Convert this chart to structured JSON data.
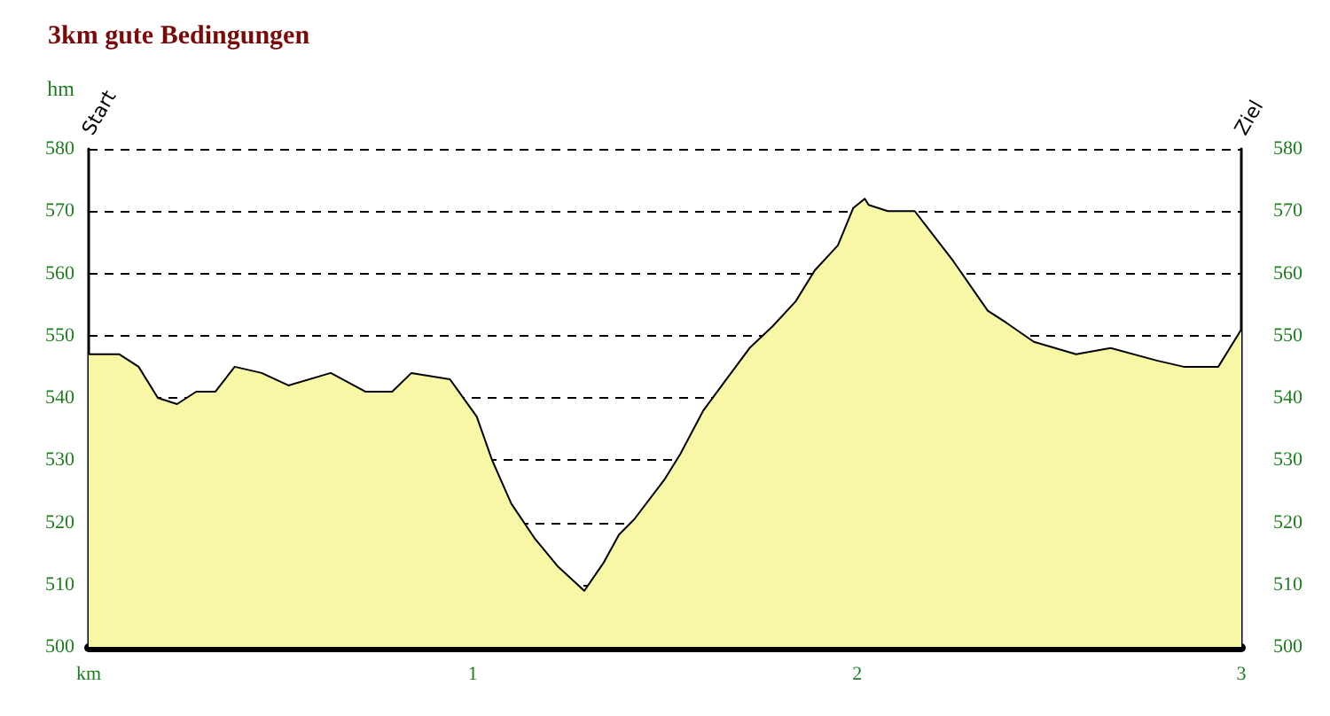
{
  "chart_data": {
    "type": "area",
    "title": "3km gute Bedingungen",
    "xlabel": null,
    "ylabel": "hm",
    "xlim": [
      0,
      3
    ],
    "xticks": [
      {
        "value": 0,
        "label": "km"
      },
      1,
      2,
      3
    ],
    "ylim": [
      500,
      580
    ],
    "yticks": [
      500,
      510,
      520,
      530,
      540,
      550,
      560,
      570,
      580
    ],
    "y2lim": [
      500,
      580
    ],
    "y2ticks": [
      500,
      510,
      520,
      530,
      540,
      550,
      560,
      570,
      580
    ],
    "grid": "y",
    "annotations": [
      "Start",
      "Ziel"
    ],
    "series": [
      {
        "color": "#f7f7a6",
        "x": [
          0,
          0.08,
          0.13,
          0.18,
          0.23,
          0.28,
          0.33,
          0.38,
          0.45,
          0.52,
          0.63,
          0.72,
          0.79,
          0.84,
          0.89,
          0.94,
          1.01,
          1.05,
          1.1,
          1.16,
          1.22,
          1.29,
          1.34,
          1.38,
          1.42,
          1.5,
          1.54,
          1.6,
          1.66,
          1.72,
          1.78,
          1.84,
          1.89,
          1.95,
          1.99,
          2.02,
          2.03,
          2.08,
          2.15,
          2.25,
          2.34,
          2.39,
          2.46,
          2.57,
          2.66,
          2.78,
          2.85,
          2.94,
          3
        ],
        "values": [
          547,
          547,
          545,
          540,
          539,
          541,
          541,
          545,
          544,
          542,
          544,
          541,
          541,
          544,
          543.5,
          543,
          537,
          530,
          523,
          517.5,
          513,
          509,
          513.5,
          518,
          520.5,
          527,
          531,
          538,
          543,
          548,
          551.5,
          555.5,
          560.5,
          564.5,
          570.5,
          572,
          571,
          570,
          570,
          562,
          554,
          552,
          549,
          547,
          548,
          546,
          545,
          545,
          551
        ]
      }
    ]
  }
}
